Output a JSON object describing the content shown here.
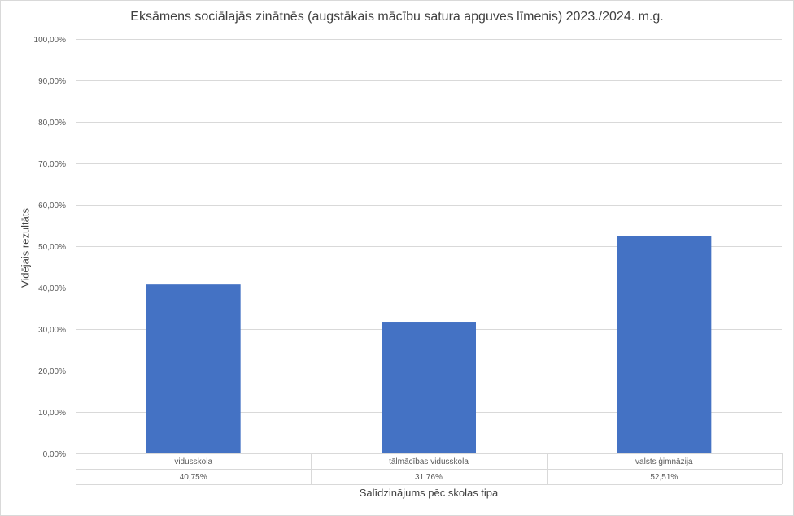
{
  "chart_data": {
    "type": "bar",
    "title": "Eksāmens sociālajās zinātnēs (augstākais mācību satura apguves līmenis) 2023./2024. m.g.",
    "xlabel": "Salīdzinājums pēc skolas tipa",
    "ylabel": "Vidējais rezultāts",
    "categories": [
      "vidusskola",
      "tālmācības vidusskola",
      "valsts ģimnāzija"
    ],
    "values": [
      40.75,
      31.76,
      52.51
    ],
    "value_labels": [
      "40,75%",
      "31,76%",
      "52,51%"
    ],
    "ylim": [
      0,
      100
    ],
    "yticks": [
      0,
      10,
      20,
      30,
      40,
      50,
      60,
      70,
      80,
      90,
      100
    ],
    "ytick_labels": [
      "0,00%",
      "10,00%",
      "20,00%",
      "30,00%",
      "40,00%",
      "50,00%",
      "60,00%",
      "70,00%",
      "80,00%",
      "90,00%",
      "100,00%"
    ],
    "grid": true,
    "legend": "none",
    "data_table": true,
    "bar_color": "#4472c4"
  }
}
